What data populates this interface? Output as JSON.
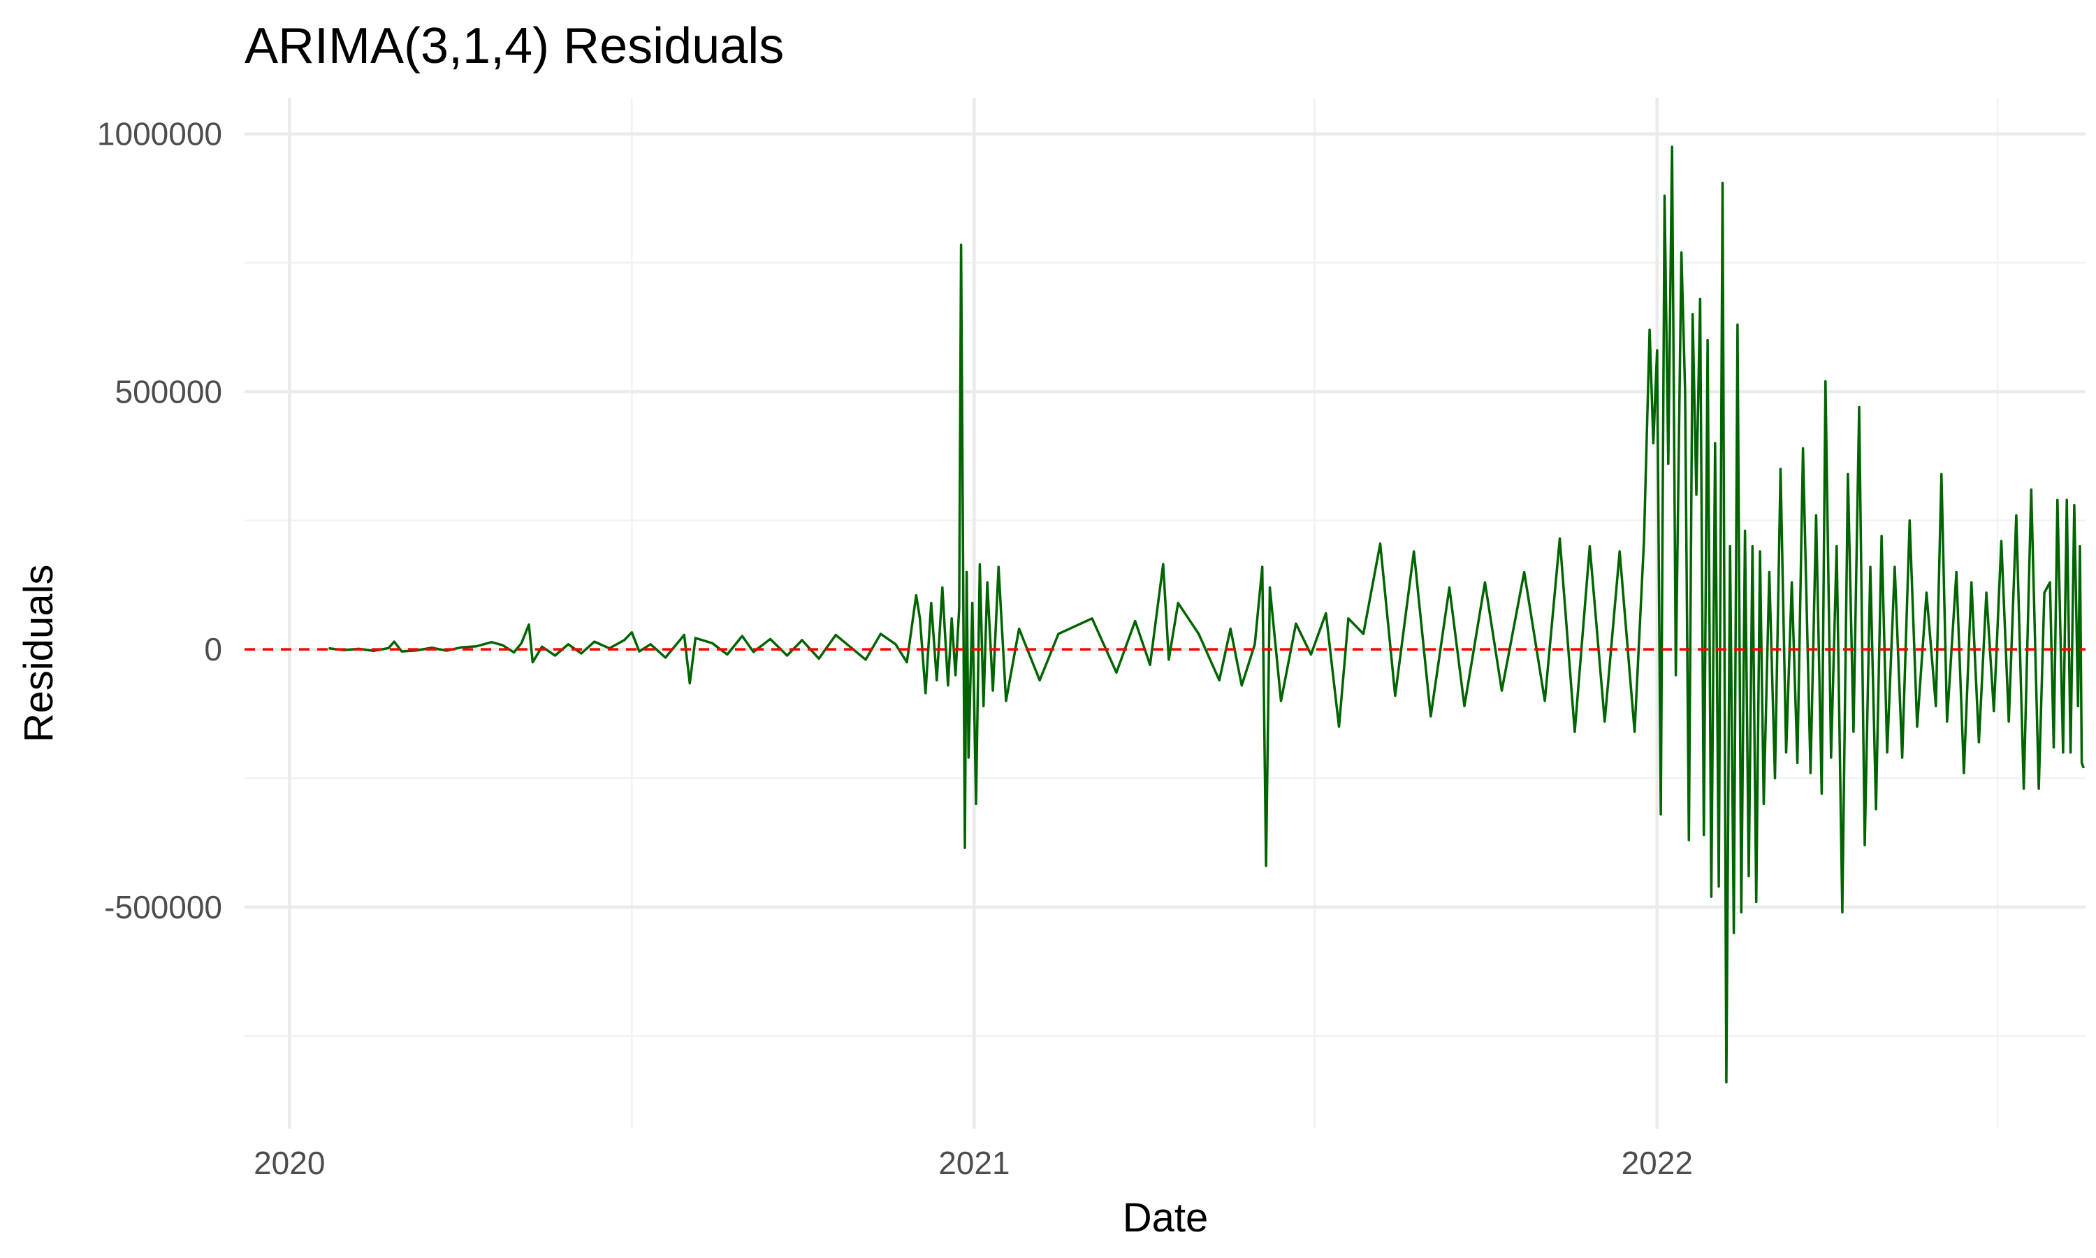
{
  "chart_data": {
    "type": "line",
    "title": "ARIMA(3,1,4) Residuals",
    "xlabel": "Date",
    "ylabel": "Residuals",
    "x_range": [
      "2019-12-08",
      "2022-08-18"
    ],
    "x_ticks": [
      {
        "label": "2020",
        "date": "2020-01-01"
      },
      {
        "label": "2021",
        "date": "2021-01-01"
      },
      {
        "label": "2022",
        "date": "2022-01-01"
      }
    ],
    "x_minor_ticks": [
      "2020-07-02",
      "2021-07-02",
      "2022-07-02"
    ],
    "ylim": [
      -930000,
      1070000
    ],
    "y_ticks": [
      {
        "label": "-500000",
        "value": -500000
      },
      {
        "label": "0",
        "value": 0
      },
      {
        "label": "500000",
        "value": 500000
      },
      {
        "label": "1000000",
        "value": 1000000
      }
    ],
    "y_minor_ticks": [
      -750000,
      -250000,
      250000,
      750000
    ],
    "grid": true,
    "reference_line": {
      "value": 0,
      "color": "#ff0000",
      "style": "dashed"
    },
    "series": [
      {
        "color": "#006400",
        "points": [
          [
            "2020-01-22",
            2000
          ],
          [
            "2020-01-30",
            -1500
          ],
          [
            "2020-02-07",
            1000
          ],
          [
            "2020-02-15",
            -3000
          ],
          [
            "2020-02-23",
            2500
          ],
          [
            "2020-02-26",
            15000
          ],
          [
            "2020-03-01",
            -4000
          ],
          [
            "2020-03-09",
            -2000
          ],
          [
            "2020-03-17",
            3000
          ],
          [
            "2020-03-25",
            -2500
          ],
          [
            "2020-04-02",
            4000
          ],
          [
            "2020-04-10",
            6000
          ],
          [
            "2020-04-18",
            14000
          ],
          [
            "2020-04-24",
            8000
          ],
          [
            "2020-04-30",
            -6000
          ],
          [
            "2020-05-04",
            12000
          ],
          [
            "2020-05-08",
            48000
          ],
          [
            "2020-05-10",
            -25000
          ],
          [
            "2020-05-15",
            5000
          ],
          [
            "2020-05-22",
            -12000
          ],
          [
            "2020-05-29",
            10000
          ],
          [
            "2020-06-05",
            -8000
          ],
          [
            "2020-06-12",
            15000
          ],
          [
            "2020-06-20",
            2000
          ],
          [
            "2020-06-28",
            18000
          ],
          [
            "2020-07-02",
            33000
          ],
          [
            "2020-07-06",
            -4000
          ],
          [
            "2020-07-12",
            10000
          ],
          [
            "2020-07-20",
            -16000
          ],
          [
            "2020-07-30",
            28000
          ],
          [
            "2020-08-02",
            -66000
          ],
          [
            "2020-08-05",
            22000
          ],
          [
            "2020-08-14",
            12000
          ],
          [
            "2020-08-22",
            -10000
          ],
          [
            "2020-08-30",
            26000
          ],
          [
            "2020-09-05",
            -5000
          ],
          [
            "2020-09-14",
            20000
          ],
          [
            "2020-09-23",
            -12000
          ],
          [
            "2020-10-01",
            18000
          ],
          [
            "2020-10-10",
            -18000
          ],
          [
            "2020-10-19",
            28000
          ],
          [
            "2020-10-27",
            4000
          ],
          [
            "2020-11-04",
            -20000
          ],
          [
            "2020-11-12",
            30000
          ],
          [
            "2020-11-20",
            10000
          ],
          [
            "2020-11-26",
            -25000
          ],
          [
            "2020-12-01",
            105000
          ],
          [
            "2020-12-03",
            60000
          ],
          [
            "2020-12-06",
            -85000
          ],
          [
            "2020-12-09",
            90000
          ],
          [
            "2020-12-12",
            -60000
          ],
          [
            "2020-12-15",
            120000
          ],
          [
            "2020-12-18",
            -70000
          ],
          [
            "2020-12-20",
            60000
          ],
          [
            "2020-12-22",
            -50000
          ],
          [
            "2020-12-24",
            80000
          ],
          [
            "2020-12-25",
            785000
          ],
          [
            "2020-12-27",
            -385000
          ],
          [
            "2020-12-28",
            150000
          ],
          [
            "2020-12-29",
            -210000
          ],
          [
            "2020-12-31",
            90000
          ],
          [
            "2021-01-02",
            -300000
          ],
          [
            "2021-01-04",
            165000
          ],
          [
            "2021-01-06",
            -110000
          ],
          [
            "2021-01-08",
            130000
          ],
          [
            "2021-01-11",
            -80000
          ],
          [
            "2021-01-14",
            160000
          ],
          [
            "2021-01-18",
            -100000
          ],
          [
            "2021-01-25",
            40000
          ],
          [
            "2021-02-05",
            -60000
          ],
          [
            "2021-02-15",
            30000
          ],
          [
            "2021-03-05",
            60000
          ],
          [
            "2021-03-18",
            -45000
          ],
          [
            "2021-03-28",
            55000
          ],
          [
            "2021-04-05",
            -30000
          ],
          [
            "2021-04-12",
            165000
          ],
          [
            "2021-04-15",
            -20000
          ],
          [
            "2021-04-20",
            90000
          ],
          [
            "2021-05-01",
            30000
          ],
          [
            "2021-05-12",
            -60000
          ],
          [
            "2021-05-18",
            40000
          ],
          [
            "2021-05-24",
            -70000
          ],
          [
            "2021-05-31",
            10000
          ],
          [
            "2021-06-04",
            160000
          ],
          [
            "2021-06-06",
            -420000
          ],
          [
            "2021-06-08",
            120000
          ],
          [
            "2021-06-14",
            -100000
          ],
          [
            "2021-06-22",
            50000
          ],
          [
            "2021-06-30",
            -10000
          ],
          [
            "2021-07-08",
            70000
          ],
          [
            "2021-07-15",
            -150000
          ],
          [
            "2021-07-20",
            60000
          ],
          [
            "2021-07-28",
            30000
          ],
          [
            "2021-08-06",
            205000
          ],
          [
            "2021-08-14",
            -90000
          ],
          [
            "2021-08-24",
            190000
          ],
          [
            "2021-09-02",
            -130000
          ],
          [
            "2021-09-12",
            120000
          ],
          [
            "2021-09-20",
            -110000
          ],
          [
            "2021-10-01",
            130000
          ],
          [
            "2021-10-10",
            -80000
          ],
          [
            "2021-10-22",
            150000
          ],
          [
            "2021-11-02",
            -100000
          ],
          [
            "2021-11-10",
            215000
          ],
          [
            "2021-11-18",
            -160000
          ],
          [
            "2021-11-26",
            200000
          ],
          [
            "2021-12-04",
            -140000
          ],
          [
            "2021-12-12",
            190000
          ],
          [
            "2021-12-20",
            -160000
          ],
          [
            "2021-12-25",
            210000
          ],
          [
            "2021-12-28",
            620000
          ],
          [
            "2021-12-30",
            400000
          ],
          [
            "2022-01-01",
            580000
          ],
          [
            "2022-01-03",
            -320000
          ],
          [
            "2022-01-05",
            880000
          ],
          [
            "2022-01-07",
            360000
          ],
          [
            "2022-01-09",
            975000
          ],
          [
            "2022-01-11",
            -50000
          ],
          [
            "2022-01-14",
            770000
          ],
          [
            "2022-01-16",
            500000
          ],
          [
            "2022-01-18",
            -370000
          ],
          [
            "2022-01-20",
            650000
          ],
          [
            "2022-01-22",
            300000
          ],
          [
            "2022-01-24",
            680000
          ],
          [
            "2022-01-26",
            -360000
          ],
          [
            "2022-01-28",
            600000
          ],
          [
            "2022-01-30",
            -480000
          ],
          [
            "2022-02-01",
            400000
          ],
          [
            "2022-02-03",
            -460000
          ],
          [
            "2022-02-05",
            905000
          ],
          [
            "2022-02-07",
            -840000
          ],
          [
            "2022-02-09",
            200000
          ],
          [
            "2022-02-11",
            -550000
          ],
          [
            "2022-02-13",
            630000
          ],
          [
            "2022-02-15",
            -510000
          ],
          [
            "2022-02-17",
            230000
          ],
          [
            "2022-02-19",
            -440000
          ],
          [
            "2022-02-21",
            200000
          ],
          [
            "2022-02-23",
            -490000
          ],
          [
            "2022-02-25",
            190000
          ],
          [
            "2022-02-27",
            -300000
          ],
          [
            "2022-03-02",
            150000
          ],
          [
            "2022-03-05",
            -250000
          ],
          [
            "2022-03-08",
            350000
          ],
          [
            "2022-03-11",
            -200000
          ],
          [
            "2022-03-14",
            130000
          ],
          [
            "2022-03-17",
            -220000
          ],
          [
            "2022-03-20",
            390000
          ],
          [
            "2022-03-24",
            -240000
          ],
          [
            "2022-03-27",
            260000
          ],
          [
            "2022-03-30",
            -280000
          ],
          [
            "2022-04-01",
            520000
          ],
          [
            "2022-04-04",
            -210000
          ],
          [
            "2022-04-07",
            200000
          ],
          [
            "2022-04-10",
            -510000
          ],
          [
            "2022-04-13",
            340000
          ],
          [
            "2022-04-16",
            -160000
          ],
          [
            "2022-04-19",
            470000
          ],
          [
            "2022-04-22",
            -380000
          ],
          [
            "2022-04-25",
            160000
          ],
          [
            "2022-04-28",
            -310000
          ],
          [
            "2022-05-01",
            220000
          ],
          [
            "2022-05-04",
            -200000
          ],
          [
            "2022-05-08",
            160000
          ],
          [
            "2022-05-12",
            -210000
          ],
          [
            "2022-05-16",
            250000
          ],
          [
            "2022-05-20",
            -150000
          ],
          [
            "2022-05-25",
            110000
          ],
          [
            "2022-05-30",
            -110000
          ],
          [
            "2022-06-02",
            340000
          ],
          [
            "2022-06-05",
            -140000
          ],
          [
            "2022-06-10",
            150000
          ],
          [
            "2022-06-14",
            -240000
          ],
          [
            "2022-06-18",
            130000
          ],
          [
            "2022-06-22",
            -180000
          ],
          [
            "2022-06-26",
            110000
          ],
          [
            "2022-06-30",
            -120000
          ],
          [
            "2022-07-04",
            210000
          ],
          [
            "2022-07-08",
            -140000
          ],
          [
            "2022-07-12",
            260000
          ],
          [
            "2022-07-16",
            -270000
          ],
          [
            "2022-07-20",
            310000
          ],
          [
            "2022-07-24",
            -270000
          ],
          [
            "2022-07-27",
            110000
          ],
          [
            "2022-07-30",
            130000
          ],
          [
            "2022-08-01",
            -190000
          ],
          [
            "2022-08-03",
            290000
          ],
          [
            "2022-08-06",
            -200000
          ],
          [
            "2022-08-08",
            290000
          ],
          [
            "2022-08-10",
            -200000
          ],
          [
            "2022-08-12",
            280000
          ],
          [
            "2022-08-14",
            -110000
          ],
          [
            "2022-08-15",
            200000
          ],
          [
            "2022-08-16",
            -220000
          ],
          [
            "2022-08-17",
            -230000
          ]
        ]
      }
    ]
  }
}
